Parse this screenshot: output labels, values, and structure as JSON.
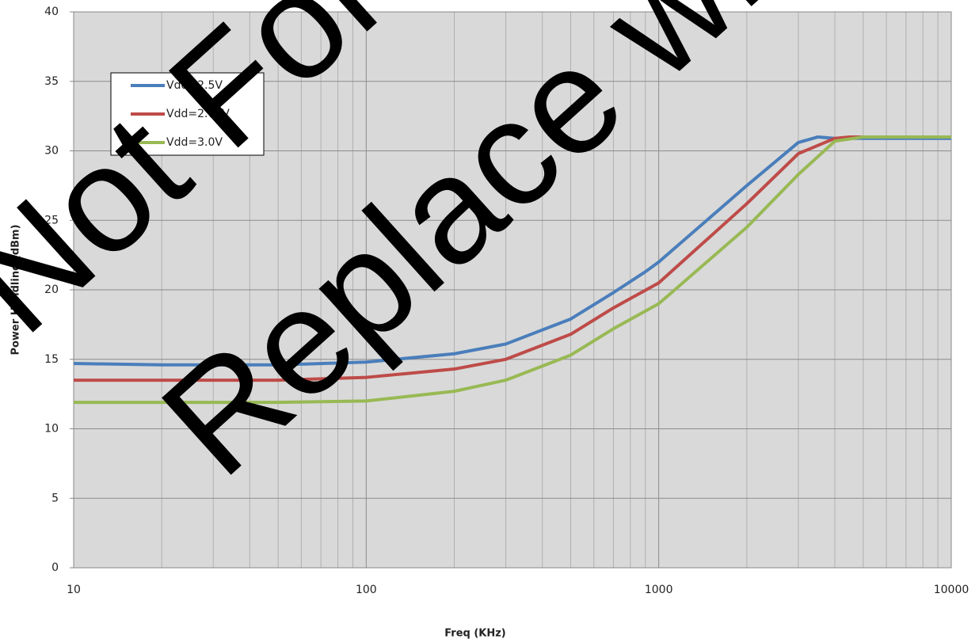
{
  "chart_data": {
    "type": "line",
    "xlabel": "Freq (KHz)",
    "ylabel": "Power Handling (dBm)",
    "xscale": "log",
    "xlim": [
      10,
      10000
    ],
    "xticks": [
      10,
      100,
      1000,
      10000
    ],
    "ylim": [
      0,
      40
    ],
    "yticks": [
      0,
      5,
      10,
      15,
      20,
      25,
      30,
      35,
      40
    ],
    "grid": true,
    "legend": "upper left",
    "annotations": [
      "Not For",
      "Replace wit"
    ],
    "series": [
      {
        "name": "Vdd=2.5V",
        "color": "#4a7ebb",
        "x": [
          10,
          20,
          50,
          100,
          200,
          300,
          500,
          700,
          900,
          1000,
          2000,
          3000,
          3500,
          4000,
          10000
        ],
        "values": [
          14.7,
          14.6,
          14.6,
          14.8,
          15.4,
          16.1,
          17.9,
          19.8,
          21.3,
          22.0,
          27.5,
          30.6,
          31.0,
          30.9,
          30.9
        ]
      },
      {
        "name": "Vdd=2.75V",
        "color": "#be4b48",
        "x": [
          10,
          50,
          100,
          200,
          300,
          500,
          700,
          1000,
          2000,
          3000,
          4000,
          4500,
          10000
        ],
        "values": [
          13.5,
          13.5,
          13.7,
          14.3,
          15.0,
          16.8,
          18.7,
          20.5,
          26.2,
          29.8,
          30.9,
          31.0,
          31.0
        ]
      },
      {
        "name": "Vdd=3.0V",
        "color": "#98b954",
        "x": [
          10,
          50,
          100,
          200,
          300,
          500,
          700,
          1000,
          2000,
          3000,
          4000,
          5000,
          10000
        ],
        "values": [
          11.9,
          11.9,
          12.0,
          12.7,
          13.5,
          15.3,
          17.2,
          19.0,
          24.5,
          28.3,
          30.7,
          31.0,
          31.0
        ]
      }
    ]
  }
}
